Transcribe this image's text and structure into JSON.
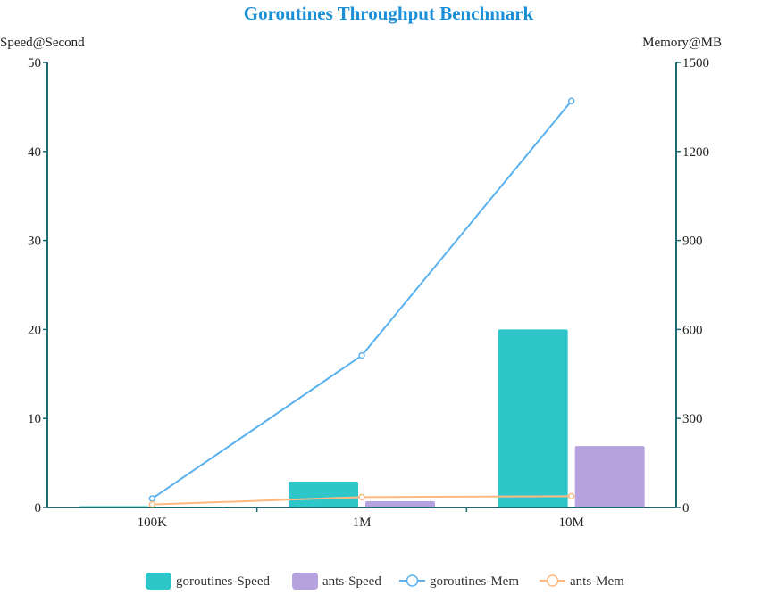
{
  "chart_data": {
    "type": "bar",
    "title": "Goroutines Throughput Benchmark",
    "categories": [
      "100K",
      "1M",
      "10M"
    ],
    "y_left": {
      "label": "Speed@Second",
      "min": 0,
      "max": 50,
      "ticks": [
        0,
        10,
        20,
        30,
        40,
        50
      ]
    },
    "y_right": {
      "label": "Memory@MB",
      "min": 0,
      "max": 1500,
      "ticks": [
        0,
        300,
        600,
        900,
        1200,
        1500
      ]
    },
    "series": [
      {
        "name": "goroutines-Speed",
        "type": "bar",
        "axis": "left",
        "color": "#2ec7c9",
        "values": [
          0.15,
          2.9,
          20
        ]
      },
      {
        "name": "ants-Speed",
        "type": "bar",
        "axis": "left",
        "color": "#b6a2de",
        "values": [
          0.1,
          0.7,
          6.9
        ]
      },
      {
        "name": "goroutines-Mem",
        "type": "line",
        "axis": "right",
        "color": "#5ab1ef",
        "values": [
          30,
          512,
          1370
        ]
      },
      {
        "name": "ants-Mem",
        "type": "line",
        "axis": "right",
        "color": "#ffb980",
        "values": [
          10,
          35,
          38
        ]
      }
    ],
    "legend_position": "bottom-center",
    "grid": false
  }
}
